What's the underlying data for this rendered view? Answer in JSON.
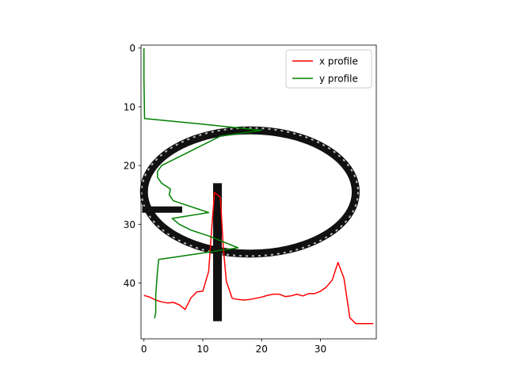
{
  "chart_data": {
    "type": "line",
    "title": "",
    "xlabel": "",
    "ylabel": "",
    "xlim": [
      -0.5,
      39.5
    ],
    "ylim": [
      49.5,
      -0.5
    ],
    "y_inverted": true,
    "grid": false,
    "background_image": "grayscale binary image of a handwritten character (loop with vertical stroke), black strokes on white",
    "x_ticks": [
      0,
      10,
      20,
      30
    ],
    "y_ticks": [
      0,
      10,
      20,
      30,
      40
    ],
    "legend": {
      "position": "upper-right",
      "entries": [
        "x profile",
        "y profile"
      ]
    },
    "series": [
      {
        "name": "x profile",
        "color": "#ff0000",
        "x": [
          0,
          1,
          2,
          3,
          4,
          5,
          6,
          7,
          8,
          9,
          10,
          11,
          11.5,
          12,
          12.5,
          13,
          13.5,
          14,
          15,
          16,
          17,
          18,
          19,
          20,
          21,
          22,
          23,
          24,
          25,
          26,
          27,
          28,
          29,
          30,
          31,
          32,
          33,
          34,
          35,
          36,
          37,
          38,
          39
        ],
        "y": [
          42.1,
          42.4,
          42.9,
          43.2,
          43.4,
          43.3,
          43.7,
          44.5,
          42.5,
          41.5,
          41.4,
          38,
          31,
          24.6,
          25,
          25.4,
          34,
          39.7,
          42.6,
          42.8,
          42.9,
          42.8,
          42.6,
          42.4,
          42.1,
          41.9,
          41.9,
          42.3,
          42.2,
          41.9,
          42.2,
          41.8,
          41.8,
          41.4,
          40.7,
          39.5,
          36.5,
          39.2,
          45.9,
          46.9,
          46.9,
          46.9,
          46.9
        ]
      },
      {
        "name": "y profile",
        "color": "#008000",
        "x": [
          0,
          0,
          0.1,
          10.5,
          20,
          13,
          11,
          9,
          7,
          5,
          3,
          2.3,
          2.3,
          3,
          4.5,
          4.3,
          5,
          11,
          4.8,
          6,
          8,
          11,
          16,
          2.5,
          2.3,
          2,
          2,
          1.8
        ],
        "y": [
          0,
          5,
          12,
          13,
          14,
          15,
          16,
          17,
          18,
          19,
          20,
          21,
          22,
          23,
          24,
          25,
          26,
          28,
          29,
          30,
          31,
          32,
          34,
          36,
          38,
          42,
          45,
          46
        ]
      }
    ],
    "image_strokes": {
      "ellipse": {
        "cx": 18,
        "cy": 24.5,
        "rx": 18,
        "ry": 10.5
      },
      "vertical_stroke": {
        "x": 12.5,
        "y1": 23,
        "y2": 46.5
      }
    }
  }
}
